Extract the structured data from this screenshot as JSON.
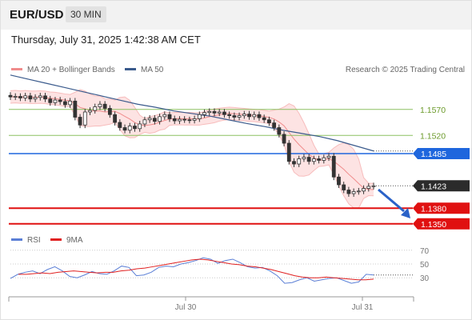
{
  "header": {
    "pair": "EUR/USD",
    "timeframe": "30 MIN",
    "datetime": "Thursday, July 31, 2025 1:42:38 AM CET",
    "credit": "Research © 2025 Trading Central"
  },
  "legend": {
    "main": [
      {
        "label": "MA 20 + Bollinger Bands",
        "color": "#f08c8c"
      },
      {
        "label": "MA 50",
        "color": "#3a5a8c"
      }
    ],
    "rsi": [
      {
        "label": "RSI",
        "color": "#5b7fd6"
      },
      {
        "label": "9MA",
        "color": "#e02020"
      }
    ]
  },
  "colors": {
    "up_candle": "#ffffff",
    "down_candle": "#ffffff",
    "candle_outline": "#333333",
    "support": "#e01010",
    "pivot": "#1e66dd",
    "resistance": "#8cc060",
    "price_label": "#2b2b2b",
    "arrow": "#2a62c8"
  },
  "chart_data": [
    {
      "type": "candlestick",
      "y_unit": "price",
      "ylim": [
        1.1345,
        1.1625
      ],
      "x_ticks": [
        "Jul 30",
        "Jul 31"
      ],
      "levels": [
        {
          "value": 1.157,
          "label": "1.1570",
          "kind": "resistance"
        },
        {
          "value": 1.152,
          "label": "1.1520",
          "kind": "resistance"
        },
        {
          "value": 1.1485,
          "label": "1.1485",
          "kind": "pivot"
        },
        {
          "value": 1.138,
          "label": "1.1380",
          "kind": "support"
        },
        {
          "value": 1.135,
          "label": "1.1350",
          "kind": "support"
        }
      ],
      "last_price": {
        "value": 1.1423,
        "label": "1.1423"
      },
      "close_series": [
        1.1594,
        1.1595,
        1.1592,
        1.1596,
        1.159,
        1.1593,
        1.1596,
        1.159,
        1.1583,
        1.1588,
        1.1585,
        1.1579,
        1.1586,
        1.1555,
        1.154,
        1.1565,
        1.1568,
        1.1575,
        1.158,
        1.1572,
        1.156,
        1.1545,
        1.1535,
        1.153,
        1.1538,
        1.1533,
        1.1542,
        1.155,
        1.1553,
        1.1547,
        1.1556,
        1.156,
        1.1552,
        1.1548,
        1.1551,
        1.155,
        1.1549,
        1.1552,
        1.156,
        1.1564,
        1.1566,
        1.1563,
        1.1565,
        1.156,
        1.1558,
        1.1555,
        1.1558,
        1.1561,
        1.1556,
        1.156,
        1.1554,
        1.155,
        1.1544,
        1.1535,
        1.1522,
        1.1505,
        1.147,
        1.1465,
        1.1475,
        1.1478,
        1.147,
        1.1475,
        1.1472,
        1.1477,
        1.148,
        1.144,
        1.1425,
        1.1415,
        1.1408,
        1.1412,
        1.1413,
        1.1418,
        1.1422,
        1.1423
      ],
      "ma50_series": [
        1.1636,
        1.1628,
        1.162,
        1.1612,
        1.1604,
        1.1596,
        1.1588,
        1.158,
        1.1574,
        1.1567,
        1.1562,
        1.1557,
        1.155,
        1.1543,
        1.1537,
        1.153,
        1.1524,
        1.1518,
        1.151,
        1.15,
        1.149
      ],
      "rsi": {
        "ylim": [
          0,
          100
        ],
        "levels": [
          70,
          50,
          30
        ],
        "rsi_series": [
          29,
          35,
          38,
          40,
          36,
          42,
          46,
          40,
          32,
          30,
          34,
          39,
          36,
          35,
          40,
          47,
          45,
          33,
          34,
          38,
          45,
          47,
          46,
          50,
          52,
          55,
          59,
          57,
          51,
          55,
          57,
          52,
          46,
          44,
          45,
          40,
          33,
          22,
          23,
          27,
          30,
          25,
          27,
          29,
          30,
          26,
          22,
          24,
          35,
          34
        ],
        "ma9_series": [
          35,
          35,
          36,
          37,
          36,
          38,
          39,
          40,
          39,
          38,
          37,
          38,
          38,
          40,
          41,
          43,
          44,
          46,
          48,
          50,
          52,
          54,
          56,
          57,
          56,
          54,
          52,
          50,
          49,
          47,
          46,
          44,
          42,
          39,
          36,
          33,
          31,
          30,
          30,
          31,
          30,
          29,
          28,
          27,
          27,
          28
        ]
      }
    }
  ]
}
